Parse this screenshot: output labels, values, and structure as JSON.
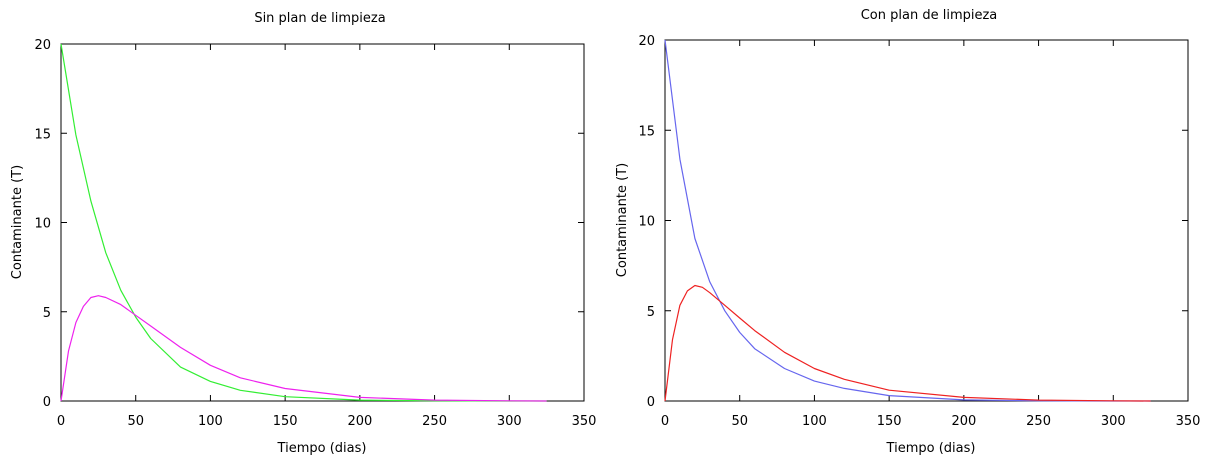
{
  "chart_data": [
    {
      "type": "line",
      "title": "Sin plan de limpieza",
      "xlabel": "Tiempo (dias)",
      "ylabel": "Contaminante (T)",
      "xlim": [
        0,
        350
      ],
      "ylim": [
        0,
        20
      ],
      "xticks": [
        0,
        50,
        100,
        150,
        200,
        250,
        300,
        350
      ],
      "yticks": [
        0,
        5,
        10,
        15,
        20
      ],
      "grid": false,
      "series": [
        {
          "color": "#33ee33",
          "x": [
            0,
            10,
            20,
            30,
            40,
            50,
            60,
            80,
            100,
            120,
            150,
            200,
            250,
            300,
            325
          ],
          "y": [
            20.0,
            14.9,
            11.2,
            8.3,
            6.2,
            4.7,
            3.5,
            1.9,
            1.1,
            0.6,
            0.24,
            0.05,
            0.01,
            0.0,
            0.0
          ]
        },
        {
          "color": "#ee22ee",
          "x": [
            0,
            5,
            10,
            15,
            20,
            25,
            30,
            40,
            50,
            60,
            80,
            100,
            120,
            150,
            200,
            250,
            300,
            325
          ],
          "y": [
            0.0,
            2.8,
            4.4,
            5.3,
            5.8,
            5.9,
            5.8,
            5.4,
            4.8,
            4.2,
            3.0,
            2.0,
            1.3,
            0.7,
            0.2,
            0.05,
            0.01,
            0.0
          ]
        }
      ]
    },
    {
      "type": "line",
      "title": "Con plan de limpieza",
      "xlabel": "Tiempo (dias)",
      "ylabel": "Contaminante (T)",
      "xlim": [
        0,
        350
      ],
      "ylim": [
        0,
        20
      ],
      "xticks": [
        0,
        50,
        100,
        150,
        200,
        250,
        300,
        350
      ],
      "yticks": [
        0,
        5,
        10,
        15,
        20
      ],
      "grid": false,
      "series": [
        {
          "color": "#6666ee",
          "x": [
            0,
            10,
            20,
            30,
            40,
            50,
            60,
            80,
            100,
            120,
            150,
            200,
            250,
            300,
            325
          ],
          "y": [
            20.0,
            13.4,
            9.0,
            6.6,
            5.0,
            3.8,
            2.9,
            1.8,
            1.1,
            0.7,
            0.3,
            0.06,
            0.01,
            0.0,
            0.0
          ]
        },
        {
          "color": "#ee2222",
          "x": [
            0,
            5,
            10,
            15,
            20,
            25,
            30,
            40,
            50,
            60,
            80,
            100,
            120,
            150,
            200,
            250,
            300,
            325
          ],
          "y": [
            0.0,
            3.4,
            5.3,
            6.1,
            6.4,
            6.3,
            6.0,
            5.3,
            4.6,
            3.9,
            2.7,
            1.8,
            1.2,
            0.6,
            0.2,
            0.05,
            0.01,
            0.0
          ]
        }
      ]
    }
  ]
}
